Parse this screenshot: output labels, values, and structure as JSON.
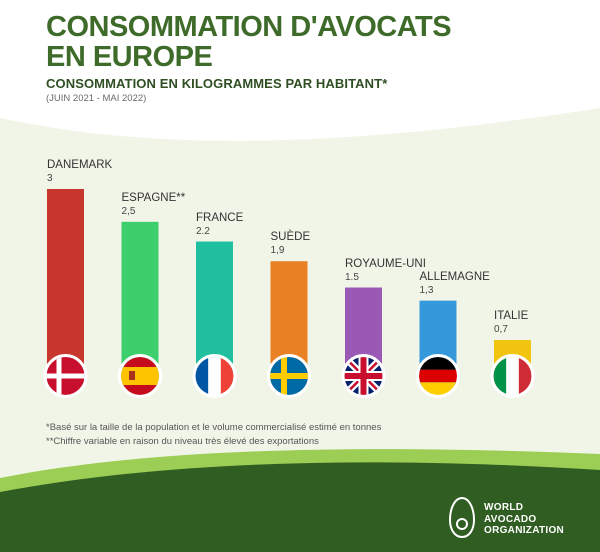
{
  "title_line1": "CONSOMMATION D'AVOCATS",
  "title_line2": "EN EUROPE",
  "subtitle": "CONSOMMATION EN KILOGRAMMES PAR HABITANT*",
  "period": "(JUIN 2021 - MAI 2022)",
  "chart_data": {
    "type": "bar",
    "title": "CONSOMMATION D'AVOCATS EN EUROPE",
    "subtitle": "CONSOMMATION EN KILOGRAMMES PAR HABITANT*",
    "categories": [
      "DANEMARK",
      "ESPAGNE**",
      "FRANCE",
      "SUÈDE",
      "ROYAUME-UNI",
      "ALLEMAGNE",
      "ITALIE"
    ],
    "value_labels": [
      "3",
      "2,5",
      "2.2",
      "1,9",
      "1.5",
      "1,3",
      "0,7"
    ],
    "values": [
      3,
      2.5,
      2.2,
      1.9,
      1.5,
      1.3,
      0.7
    ],
    "colors": [
      "#c8372d",
      "#3ccf6b",
      "#1fbf9f",
      "#e98024",
      "#9b59b6",
      "#3498db",
      "#f1c40f"
    ],
    "flags": [
      "denmark-flag",
      "spain-flag",
      "france-flag",
      "sweden-flag",
      "uk-flag",
      "germany-flag",
      "italy-flag"
    ],
    "ylim": [
      0,
      3
    ],
    "xlabel": "",
    "ylabel": ""
  },
  "footnotes": [
    "*Basé sur la taille de la population et le volume commercialisé estimé en tonnes",
    "**Chiffre variable en raison du niveau très élevé des exportations"
  ],
  "logo": {
    "icon": "avocado-logo-icon",
    "line1": "WORLD",
    "line2": "AVOCADO",
    "line3": "ORGANIZATION"
  }
}
